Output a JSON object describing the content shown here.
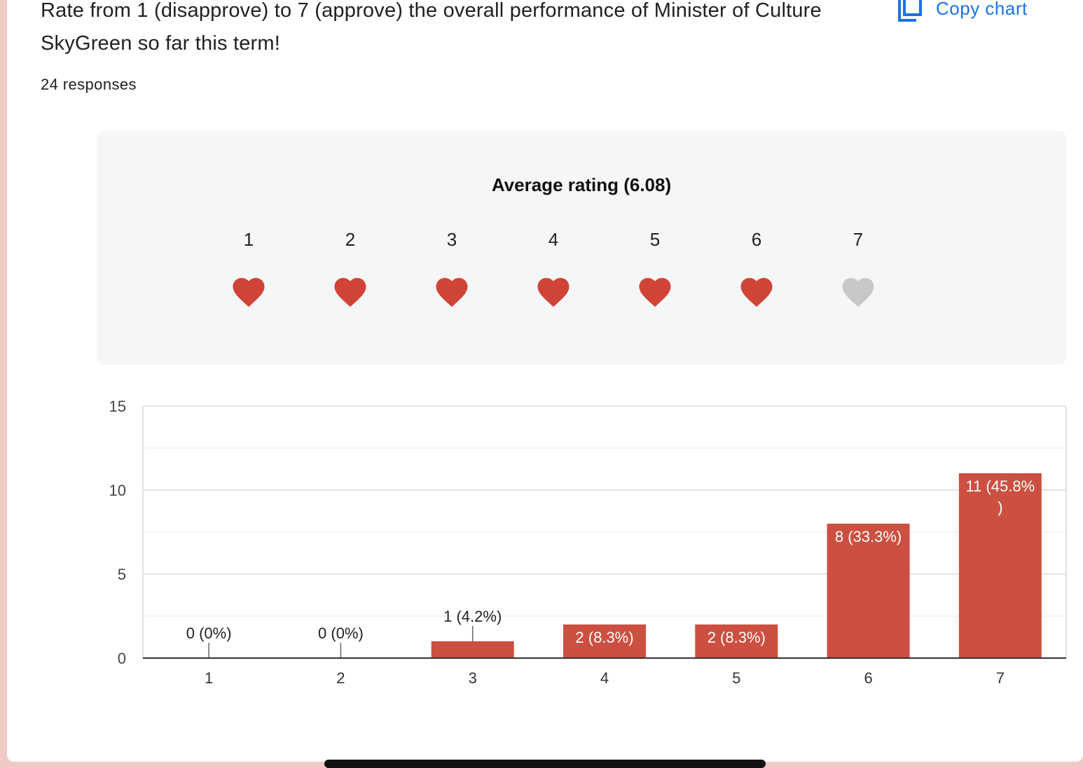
{
  "question": {
    "title": "Rate from 1 (disapprove) to 7 (approve) the overall performance of Minister of Culture SkyGreen so far this term!",
    "responses": "24 responses"
  },
  "toolbar": {
    "copy_chart_label": "Copy chart",
    "copy_icon": "copy-icon"
  },
  "rating_summary": {
    "title": "Average rating (6.08)",
    "scale": [
      "1",
      "2",
      "3",
      "4",
      "5",
      "6",
      "7"
    ],
    "filled_hearts": 6,
    "heart_color": "#d04437",
    "heart_empty_color": "#c8c8c8"
  },
  "colors": {
    "bar": "#cc5041",
    "link": "#1a73e8"
  },
  "chart_data": {
    "type": "bar",
    "categories": [
      "1",
      "2",
      "3",
      "4",
      "5",
      "6",
      "7"
    ],
    "values": [
      0,
      0,
      1,
      2,
      2,
      8,
      11
    ],
    "data_labels": [
      "0 (0%)",
      "0 (0%)",
      "1 (4.2%)",
      "2 (8.3%)",
      "2 (8.3%)",
      "8 (33.3%)",
      "11 (45.8%)"
    ],
    "y_ticks": [
      0,
      5,
      10,
      15
    ],
    "ylim": [
      0,
      15
    ],
    "grid": true,
    "title": "",
    "xlabel": "",
    "ylabel": ""
  }
}
